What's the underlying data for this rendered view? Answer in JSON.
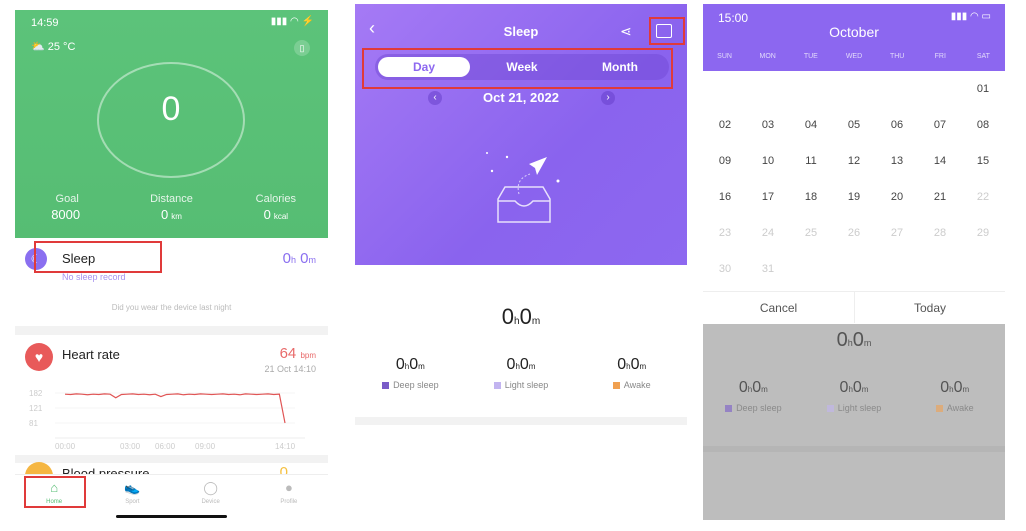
{
  "home": {
    "status_time": "14:59",
    "weather": "25 °C",
    "steps": "0",
    "stats": [
      {
        "label": "Goal",
        "value": "8000",
        "unit": ""
      },
      {
        "label": "Distance",
        "value": "0",
        "unit": "km"
      },
      {
        "label": "Calories",
        "value": "0",
        "unit": "kcal"
      }
    ],
    "sleep": {
      "title": "Sleep",
      "hours": "0",
      "minutes": "0",
      "h": "h",
      "m": "m",
      "subtitle": "No sleep record",
      "hint": "Did you wear the device last night"
    },
    "heart": {
      "title": "Heart rate",
      "value": "64",
      "unit": "bpm",
      "time": "21 Oct 14:10",
      "y_ticks": [
        "182",
        "121",
        "81"
      ],
      "x_ticks": [
        "00:00",
        "03:00",
        "06:00",
        "09:00",
        "14:10"
      ],
      "series": [
        178,
        177,
        179,
        178,
        176,
        178,
        177,
        179,
        178,
        166,
        177,
        178,
        179,
        177,
        178,
        176,
        178,
        170,
        177,
        178,
        179,
        176,
        178,
        177,
        179,
        178,
        177,
        178,
        179,
        177,
        178,
        176,
        179,
        178,
        177,
        178,
        179,
        177,
        178,
        64
      ]
    },
    "blood": {
      "title": "Blood pressure",
      "value": "0"
    },
    "nav": [
      {
        "label": "Home",
        "icon": "home-icon"
      },
      {
        "label": "Sport",
        "icon": "shoe-icon"
      },
      {
        "label": "Device",
        "icon": "band-icon"
      },
      {
        "label": "Profile",
        "icon": "person-icon"
      }
    ],
    "accent": "#56bd73"
  },
  "sleep_page": {
    "title": "Sleep",
    "tabs": [
      "Day",
      "Week",
      "Month"
    ],
    "date": "Oct 21, 2022",
    "total": {
      "h": "0",
      "m": "0"
    },
    "parts": [
      {
        "label": "Deep sleep",
        "h": "0",
        "m": "0",
        "color": "#7a5cc8"
      },
      {
        "label": "Light sleep",
        "h": "0",
        "m": "0",
        "color": "#c2b4f0"
      },
      {
        "label": "Awake",
        "h": "0",
        "m": "0",
        "color": "#f0a050"
      }
    ],
    "accent": "#8d68f0"
  },
  "calendar": {
    "status_time": "15:00",
    "month": "October",
    "weekdays": [
      "SUN",
      "MON",
      "TUE",
      "WED",
      "THU",
      "FRI",
      "SAT"
    ],
    "first_weekday": 6,
    "days": 31,
    "last_active_day": 21,
    "cancel": "Cancel",
    "today": "Today",
    "behind": {
      "total": {
        "h": "0",
        "m": "0"
      },
      "parts": [
        {
          "label": "Deep sleep",
          "h": "0",
          "m": "0"
        },
        {
          "label": "Light sleep",
          "h": "0",
          "m": "0"
        },
        {
          "label": "Awake",
          "h": "0",
          "m": "0"
        }
      ]
    }
  }
}
